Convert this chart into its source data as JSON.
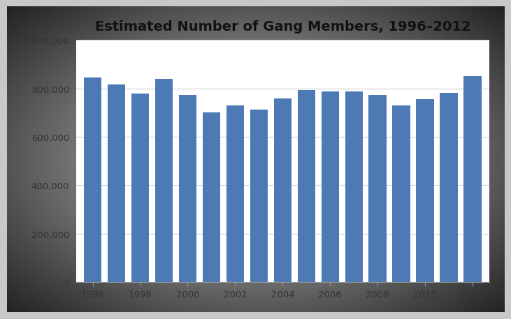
{
  "title": "Estimated Number of Gang Members, 1996–2012",
  "years": [
    1996,
    1997,
    1998,
    1999,
    2000,
    2001,
    2002,
    2003,
    2004,
    2005,
    2006,
    2007,
    2008,
    2009,
    2010,
    2011,
    2012
  ],
  "values": [
    846000,
    816000,
    780000,
    840000,
    773000,
    700000,
    731000,
    712000,
    760000,
    793000,
    788000,
    788000,
    774000,
    731000,
    756000,
    782000,
    850000
  ],
  "bar_color": "#4d7ab5",
  "background_color_outer": "#b0b0b0",
  "background_color_inner": "#e8e8e8",
  "plot_background": "#ffffff",
  "ylim": [
    0,
    1000000
  ],
  "yticks": [
    0,
    200000,
    400000,
    600000,
    800000,
    1000000
  ],
  "xtick_labels": [
    "1996",
    "1998",
    "2000",
    "2002",
    "2004",
    "2006",
    "2008",
    "2010",
    "2012"
  ],
  "xtick_positions": [
    1996,
    1998,
    2000,
    2002,
    2004,
    2006,
    2008,
    2010,
    2012
  ],
  "title_fontsize": 14,
  "tick_fontsize": 9.5,
  "grid_color": "#d0d0d0",
  "bar_width": 0.75
}
